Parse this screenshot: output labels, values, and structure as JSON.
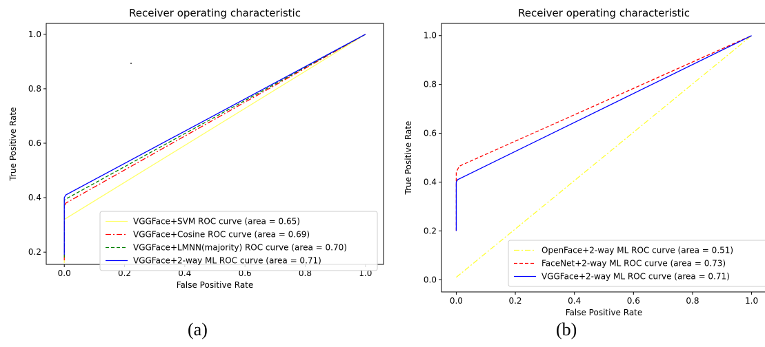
{
  "chart_data": [
    {
      "type": "line",
      "title": "Receiver operating characteristic",
      "xlabel": "False Positive Rate",
      "ylabel": "True Positive Rate",
      "xlim": [
        -0.06,
        1.06
      ],
      "ylim": [
        0.155,
        1.04
      ],
      "xticks": [
        "0.0",
        "0.2",
        "0.4",
        "0.6",
        "0.8",
        "1.0"
      ],
      "yticks": [
        "0.2",
        "0.4",
        "0.6",
        "0.8",
        "1.0"
      ],
      "grid": false,
      "legend_position": "lower-right",
      "series": [
        {
          "name": "VGGFace+SVM ROC curve (area = 0.65)",
          "color": "#ffff66",
          "dash": "solid",
          "x": [
            0.0,
            0.0,
            0.0,
            1.0
          ],
          "y": [
            0.16,
            0.16,
            0.32,
            1.0
          ]
        },
        {
          "name": "VGGFace+Cosine ROC curve (area = 0.69)",
          "color": "#ff0000",
          "dash": "dashdot",
          "x": [
            0.0,
            0.0,
            0.005,
            1.0
          ],
          "y": [
            0.17,
            0.37,
            0.38,
            1.0
          ]
        },
        {
          "name": "VGGFace+LMNN(majority) ROC curve (area = 0.70)",
          "color": "#008000",
          "dash": "dashed",
          "x": [
            0.0,
            0.0,
            0.005,
            1.0
          ],
          "y": [
            0.18,
            0.39,
            0.395,
            1.0
          ]
        },
        {
          "name": "VGGFace+2-way ML ROC curve (area = 0.71)",
          "color": "#0000ff",
          "dash": "solid",
          "x": [
            0.0,
            0.0,
            0.005,
            1.0
          ],
          "y": [
            0.19,
            0.4,
            0.41,
            1.0
          ]
        }
      ]
    },
    {
      "type": "line",
      "title": "Receiver operating characteristic",
      "xlabel": "False Positive Rate",
      "ylabel": "True Positive Rate",
      "xlim": [
        -0.05,
        1.05
      ],
      "ylim": [
        -0.05,
        1.05
      ],
      "xticks": [
        "0.0",
        "0.2",
        "0.4",
        "0.6",
        "0.8",
        "1.0"
      ],
      "yticks": [
        "0.0",
        "0.2",
        "0.4",
        "0.6",
        "0.8",
        "1.0"
      ],
      "grid": false,
      "legend_position": "lower-right",
      "series": [
        {
          "name": "OpenFace+2-way ML ROC curve (area = 0.51)",
          "color": "#ffff33",
          "dash": "dashdot",
          "x": [
            0.0,
            1.0
          ],
          "y": [
            0.01,
            1.0
          ]
        },
        {
          "name": "FaceNet+2-way ML ROC curve (area = 0.73)",
          "color": "#ff0000",
          "dash": "dashed",
          "x": [
            0.0,
            0.0,
            0.01,
            1.0
          ],
          "y": [
            0.2,
            0.44,
            0.465,
            1.0
          ]
        },
        {
          "name": "VGGFace+2-way ML ROC curve (area = 0.71)",
          "color": "#0000ff",
          "dash": "solid",
          "x": [
            0.0,
            0.0,
            0.005,
            1.0
          ],
          "y": [
            0.2,
            0.4,
            0.41,
            1.0
          ]
        }
      ]
    }
  ],
  "captions": [
    "(a)",
    "(b)"
  ]
}
